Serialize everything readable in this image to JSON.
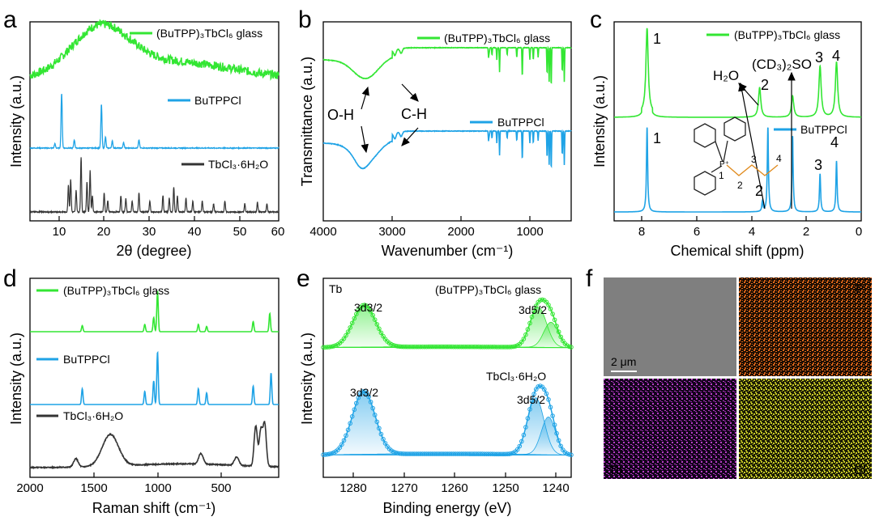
{
  "colors": {
    "glass": "#33e633",
    "butppcl": "#1fa3e6",
    "tbcl3": "#333333",
    "P_map": "#e0691c",
    "Tb_map": "#b93cc8",
    "Cl_map": "#c6c828",
    "sem": "#7a7a7a",
    "mol": "#e08a1c"
  },
  "chart_data": [
    {
      "panel": "a",
      "type": "line",
      "title": "",
      "xlabel": "2θ (degree)",
      "ylabel": "Intensity (a.u.)",
      "xlim": [
        5,
        60
      ],
      "xticks": [
        "10",
        "20",
        "30",
        "40",
        "50",
        "60"
      ],
      "series": [
        {
          "name": "(BuTPP)₃TbCl₆ glass",
          "kind": "broad",
          "peaks": [
            [
              20.5,
              1.0
            ],
            [
              37,
              0.35
            ]
          ]
        },
        {
          "name": "BuTPPCl",
          "kind": "sharp",
          "peaks": [
            [
              12.0,
              1.0
            ],
            [
              20.8,
              0.8
            ],
            [
              10.5,
              0.08
            ],
            [
              14.8,
              0.15
            ],
            [
              21.7,
              0.2
            ],
            [
              23.2,
              0.13
            ],
            [
              25.7,
              0.1
            ],
            [
              29.1,
              0.15
            ]
          ]
        },
        {
          "name": "TbCl₃·6H₂O",
          "kind": "sharp",
          "peaks": [
            [
              13.5,
              0.5
            ],
            [
              14.0,
              0.6
            ],
            [
              15.2,
              0.4
            ],
            [
              16.3,
              1.0
            ],
            [
              17.6,
              0.55
            ],
            [
              18.3,
              0.75
            ],
            [
              18.8,
              0.3
            ],
            [
              21.4,
              0.35
            ],
            [
              22.2,
              0.2
            ],
            [
              25.1,
              0.3
            ],
            [
              26.2,
              0.25
            ],
            [
              27.6,
              0.2
            ],
            [
              29.1,
              0.35
            ],
            [
              31.5,
              0.2
            ],
            [
              34.4,
              0.3
            ],
            [
              35.8,
              0.25
            ],
            [
              36.8,
              0.45
            ],
            [
              37.6,
              0.3
            ],
            [
              39.5,
              0.25
            ],
            [
              41.0,
              0.2
            ],
            [
              43.1,
              0.2
            ],
            [
              45.6,
              0.15
            ],
            [
              48.1,
              0.2
            ],
            [
              52.5,
              0.15
            ],
            [
              55.3,
              0.18
            ],
            [
              57.4,
              0.15
            ]
          ]
        }
      ]
    },
    {
      "panel": "b",
      "type": "line",
      "title": "",
      "xlabel": "Wavenumber (cm−1)",
      "ylabel": "Transmittance (a.u.)",
      "xlim": [
        4000,
        400
      ],
      "xticks": [
        "4000",
        "3000",
        "2000",
        "1000"
      ],
      "series": [
        {
          "name": "(BuTPP)₃TbCl₆ glass"
        },
        {
          "name": "BuTPPCl"
        }
      ],
      "annotations": [
        "O-H",
        "C-H"
      ]
    },
    {
      "panel": "c",
      "type": "line",
      "title": "",
      "xlabel": "Chemical shift (ppm)",
      "ylabel": "Intensity (a.u.)",
      "xlim": [
        9,
        0
      ],
      "xticks": [
        "8",
        "6",
        "4",
        "2",
        "0"
      ],
      "series": [
        {
          "name": "(BuTPP)₃TbCl₆ glass",
          "peaks": [
            [
              7.8,
              1.0
            ],
            [
              3.7,
              0.35
            ],
            [
              2.5,
              0.25
            ],
            [
              1.5,
              0.6
            ],
            [
              0.9,
              0.65
            ]
          ]
        },
        {
          "name": "BuTPPCl",
          "peaks": [
            [
              7.8,
              1.0
            ],
            [
              3.6,
              0.12
            ],
            [
              3.4,
              1.0
            ],
            [
              2.5,
              0.9
            ],
            [
              1.5,
              0.45
            ],
            [
              0.9,
              0.6
            ]
          ]
        }
      ],
      "annotations": [
        "1",
        "2",
        "3",
        "4",
        "1",
        "2",
        "3",
        "4",
        "H₂O",
        "(CD₃)₂SO"
      ],
      "molecule_labels": [
        "1",
        "2",
        "3",
        "4"
      ]
    },
    {
      "panel": "d",
      "type": "line",
      "title": "",
      "xlabel": "Raman shift (cm−1)",
      "ylabel": "Intensity (a.u.)",
      "xlim": [
        2000,
        50
      ],
      "xticks": [
        "2000",
        "1500",
        "1000",
        "500"
      ],
      "series": [
        {
          "name": "(BuTPP)₃TbCl₆ glass",
          "peaks": [
            [
              1590,
              0.15
            ],
            [
              1100,
              0.18
            ],
            [
              1030,
              0.35
            ],
            [
              1000,
              1.0
            ],
            [
              680,
              0.18
            ],
            [
              615,
              0.13
            ],
            [
              250,
              0.25
            ],
            [
              120,
              0.45
            ]
          ]
        },
        {
          "name": "BuTPPCl",
          "peaks": [
            [
              1590,
              0.3
            ],
            [
              1100,
              0.25
            ],
            [
              1030,
              0.45
            ],
            [
              1000,
              1.0
            ],
            [
              680,
              0.3
            ],
            [
              615,
              0.22
            ],
            [
              250,
              0.35
            ],
            [
              110,
              0.6
            ]
          ]
        },
        {
          "name": "TbCl₃·6H₂O",
          "peaks": [
            [
              1640,
              0.2
            ],
            [
              1370,
              0.75
            ],
            [
              660,
              0.25
            ],
            [
              380,
              0.2
            ],
            [
              230,
              0.95
            ],
            [
              190,
              0.85
            ],
            [
              160,
              1.0
            ]
          ]
        }
      ]
    },
    {
      "panel": "e",
      "type": "line",
      "title": "",
      "xlabel": "Binding energy (eV)",
      "ylabel": "Intensity (a.u.)",
      "xlim": [
        1285,
        1236
      ],
      "xticks": [
        "1280",
        "1270",
        "1260",
        "1250",
        "1240"
      ],
      "element": "Tb",
      "series": [
        {
          "name": "(BuTPP)₃TbCl₆ glass",
          "peaks": [
            [
              1276.9,
              1.0
            ],
            [
              1242.5,
              0.95
            ],
            [
              1240,
              0.6
            ]
          ]
        },
        {
          "name": "TbCl₃·6H₂O",
          "peaks": [
            [
              1277,
              1.0
            ],
            [
              1243,
              0.9
            ],
            [
              1240.5,
              0.6
            ]
          ]
        }
      ],
      "annotations": [
        "3d3/2",
        "3d5/2",
        "3d3/2",
        "3d5/2"
      ]
    }
  ],
  "panel_f": {
    "label": "f",
    "scale_bar": "2 μm",
    "maps": [
      "P",
      "Tb",
      "Cl"
    ]
  },
  "text": {
    "a": {
      "label": "a",
      "xlabel": "2θ (degree)",
      "ylabel": "Intensity (a.u.)",
      "leg_glass": "(BuTPP)₃TbCl₆ glass",
      "leg_bu": "BuTPPCl",
      "leg_tb": "TbCl₃·6H₂O",
      "t1": "10",
      "t2": "20",
      "t3": "30",
      "t4": "40",
      "t5": "50",
      "t6": "60"
    },
    "b": {
      "label": "b",
      "xlabel": "Wavenumber (cm⁻¹)",
      "ylabel": "Transmittance (a.u.)",
      "leg_glass": "(BuTPP)₃TbCl₆ glass",
      "leg_bu": "BuTPPCl",
      "oh": "O-H",
      "ch": "C-H",
      "t1": "4000",
      "t2": "3000",
      "t3": "2000",
      "t4": "1000"
    },
    "c": {
      "label": "c",
      "xlabel": "Chemical shift (ppm)",
      "ylabel": "Intensity (a.u.)",
      "leg_glass": "(BuTPP)₃TbCl₆ glass",
      "leg_bu": "BuTPPCl",
      "p1": "1",
      "p2": "2",
      "p3": "3",
      "p4": "4",
      "q1": "1",
      "q2": "2",
      "q3": "3",
      "q4": "4",
      "h2o": "H₂O",
      "dmso": "(CD₃)₂SO",
      "m1": "1",
      "m2": "2",
      "m3": "3",
      "m4": "4",
      "t1": "8",
      "t2": "6",
      "t3": "4",
      "t4": "2",
      "t5": "0"
    },
    "d": {
      "label": "d",
      "xlabel": "Raman shift (cm⁻¹)",
      "ylabel": "Intensity (a.u.)",
      "leg_glass": "(BuTPP)₃TbCl₆ glass",
      "leg_bu": "BuTPPCl",
      "leg_tb": "TbCl₃·6H₂O",
      "t1": "2000",
      "t2": "1500",
      "t3": "1000",
      "t4": "500"
    },
    "e": {
      "label": "e",
      "xlabel": "Binding energy (eV)",
      "ylabel": "Intensity (a.u.)",
      "element": "Tb",
      "leg_glass": "(BuTPP)₃TbCl₆ glass",
      "leg_tb": "TbCl₃·6H₂O",
      "d32a": "3d3/2",
      "d52a": "3d5/2",
      "d32b": "3d3/2",
      "d52b": "3d5/2",
      "t1": "1280",
      "t2": "1270",
      "t3": "1260",
      "t4": "1250",
      "t5": "1240"
    },
    "f": {
      "label": "f",
      "scale": "2 μm",
      "P": "P",
      "Tb": "Tb",
      "Cl": "Cl"
    }
  }
}
